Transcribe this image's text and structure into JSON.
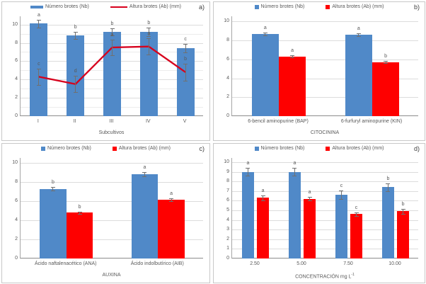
{
  "figure_title": "Four-panel figure: shoot number and shoot height bar charts",
  "colors": {
    "bar_blue": "#5089c8",
    "bar_red": "#fe0000",
    "line_red": "#d7001c",
    "grid_major": "#dcdcdc",
    "grid_minor": "#ececec",
    "axis_left": "#a6a6a6",
    "axis_bottom": "#8c8c8c",
    "error_bar": "#707070",
    "text": "#595959",
    "panel_letter": "#404040"
  },
  "chart_data": [
    {
      "type": "bar",
      "panel_label": "a)",
      "xlabel": "Subcultivos",
      "categories": [
        "I",
        "II",
        "III",
        "IV",
        "V"
      ],
      "ylim": [
        0,
        10.9
      ],
      "grid_max": 10,
      "grid_step": 1,
      "label_step": 2,
      "bar_frac": 0.48,
      "bar_gap_frac": 0,
      "legend_position": "top-center",
      "series": [
        {
          "name": "Número brotes (Nb)",
          "type": "bar",
          "color": "blue",
          "marker": "barline",
          "values": [
            10.1,
            8.8,
            9.2,
            9.2,
            7.4
          ],
          "errors": [
            0.45,
            0.4,
            0.4,
            0.5,
            0.45
          ],
          "letters": [
            "a",
            "b",
            "b",
            "b",
            "c"
          ]
        },
        {
          "name": "Altura brotes (Ab) (mm)",
          "type": "line",
          "color": "red",
          "marker": "line",
          "values": [
            4.3,
            3.5,
            7.5,
            7.6,
            4.8
          ],
          "errors": [
            0.9,
            0.9,
            0.85,
            0.9,
            0.9
          ],
          "letters": [
            "c",
            "d",
            "a",
            "a",
            "b"
          ]
        }
      ]
    },
    {
      "type": "bar",
      "panel_label": "b)",
      "xlabel": "CITOCININA",
      "categories": [
        "6-bencil aminopurine (BAP)",
        "6-furfuryl aminopurine (KIN)"
      ],
      "ylim": [
        0,
        10.55
      ],
      "grid_max": 10,
      "grid_step": 2,
      "label_step": 2,
      "bar_frac": 0.29,
      "bar_gap_frac": 0,
      "legend_position": "top-center",
      "series": [
        {
          "name": "Número brotes (Nb)",
          "type": "bar",
          "color": "blue",
          "marker": "square",
          "values": [
            8.7,
            8.6
          ],
          "errors": [
            0.15,
            0.15
          ],
          "letters": [
            "a",
            "a"
          ]
        },
        {
          "name": "Altura brotes (Ab) (mm)",
          "type": "bar",
          "color": "red",
          "marker": "square",
          "values": [
            6.3,
            5.7
          ],
          "errors": [
            0.12,
            0.12
          ],
          "letters": [
            "a",
            "b"
          ]
        }
      ]
    },
    {
      "type": "bar",
      "panel_label": "c)",
      "xlabel": "AUXINA",
      "categories": [
        "Ácido naftalenacético (ANA)",
        "Ácido indolbutírico (AIB)"
      ],
      "ylim": [
        0,
        10.55
      ],
      "grid_max": 10,
      "grid_step": 2,
      "label_step": 2,
      "bar_frac": 0.29,
      "bar_gap_frac": 0,
      "legend_position": "top-center",
      "series": [
        {
          "name": "Número brotes (Nb)",
          "type": "bar",
          "color": "blue",
          "marker": "square",
          "values": [
            7.3,
            8.85
          ],
          "errors": [
            0.2,
            0.2
          ],
          "letters": [
            "b",
            "a"
          ]
        },
        {
          "name": "Altura brotes (Ab) (mm)",
          "type": "bar",
          "color": "red",
          "marker": "square",
          "values": [
            4.8,
            6.2
          ],
          "errors": [
            0.12,
            0.15
          ],
          "letters": [
            "b",
            "a"
          ]
        }
      ]
    },
    {
      "type": "bar",
      "panel_label": "d)",
      "xlabel": "CONCENTRACIÓN mg L",
      "xlabel_sup": "-1",
      "categories": [
        "2.50",
        "5.00",
        "7.50",
        "10.00"
      ],
      "ylim": [
        0,
        10.45
      ],
      "grid_max": 10,
      "grid_step": 1,
      "label_step": 1,
      "bar_frac": 0.26,
      "bar_gap_frac": 0.06,
      "legend_position": "top-center",
      "series": [
        {
          "name": "Número brotes (Nb)",
          "type": "bar",
          "color": "blue",
          "marker": "square",
          "values": [
            9.0,
            9.0,
            6.6,
            7.4
          ],
          "errors": [
            0.4,
            0.4,
            0.45,
            0.4
          ],
          "letters": [
            "a",
            "a",
            "c",
            "b"
          ]
        },
        {
          "name": "Altura brotes (Ab) (mm)",
          "type": "bar",
          "color": "red",
          "marker": "square",
          "values": [
            6.3,
            6.2,
            4.6,
            4.9
          ],
          "errors": [
            0.25,
            0.2,
            0.2,
            0.25
          ],
          "letters": [
            "a",
            "a",
            "c",
            "b"
          ]
        }
      ]
    }
  ]
}
